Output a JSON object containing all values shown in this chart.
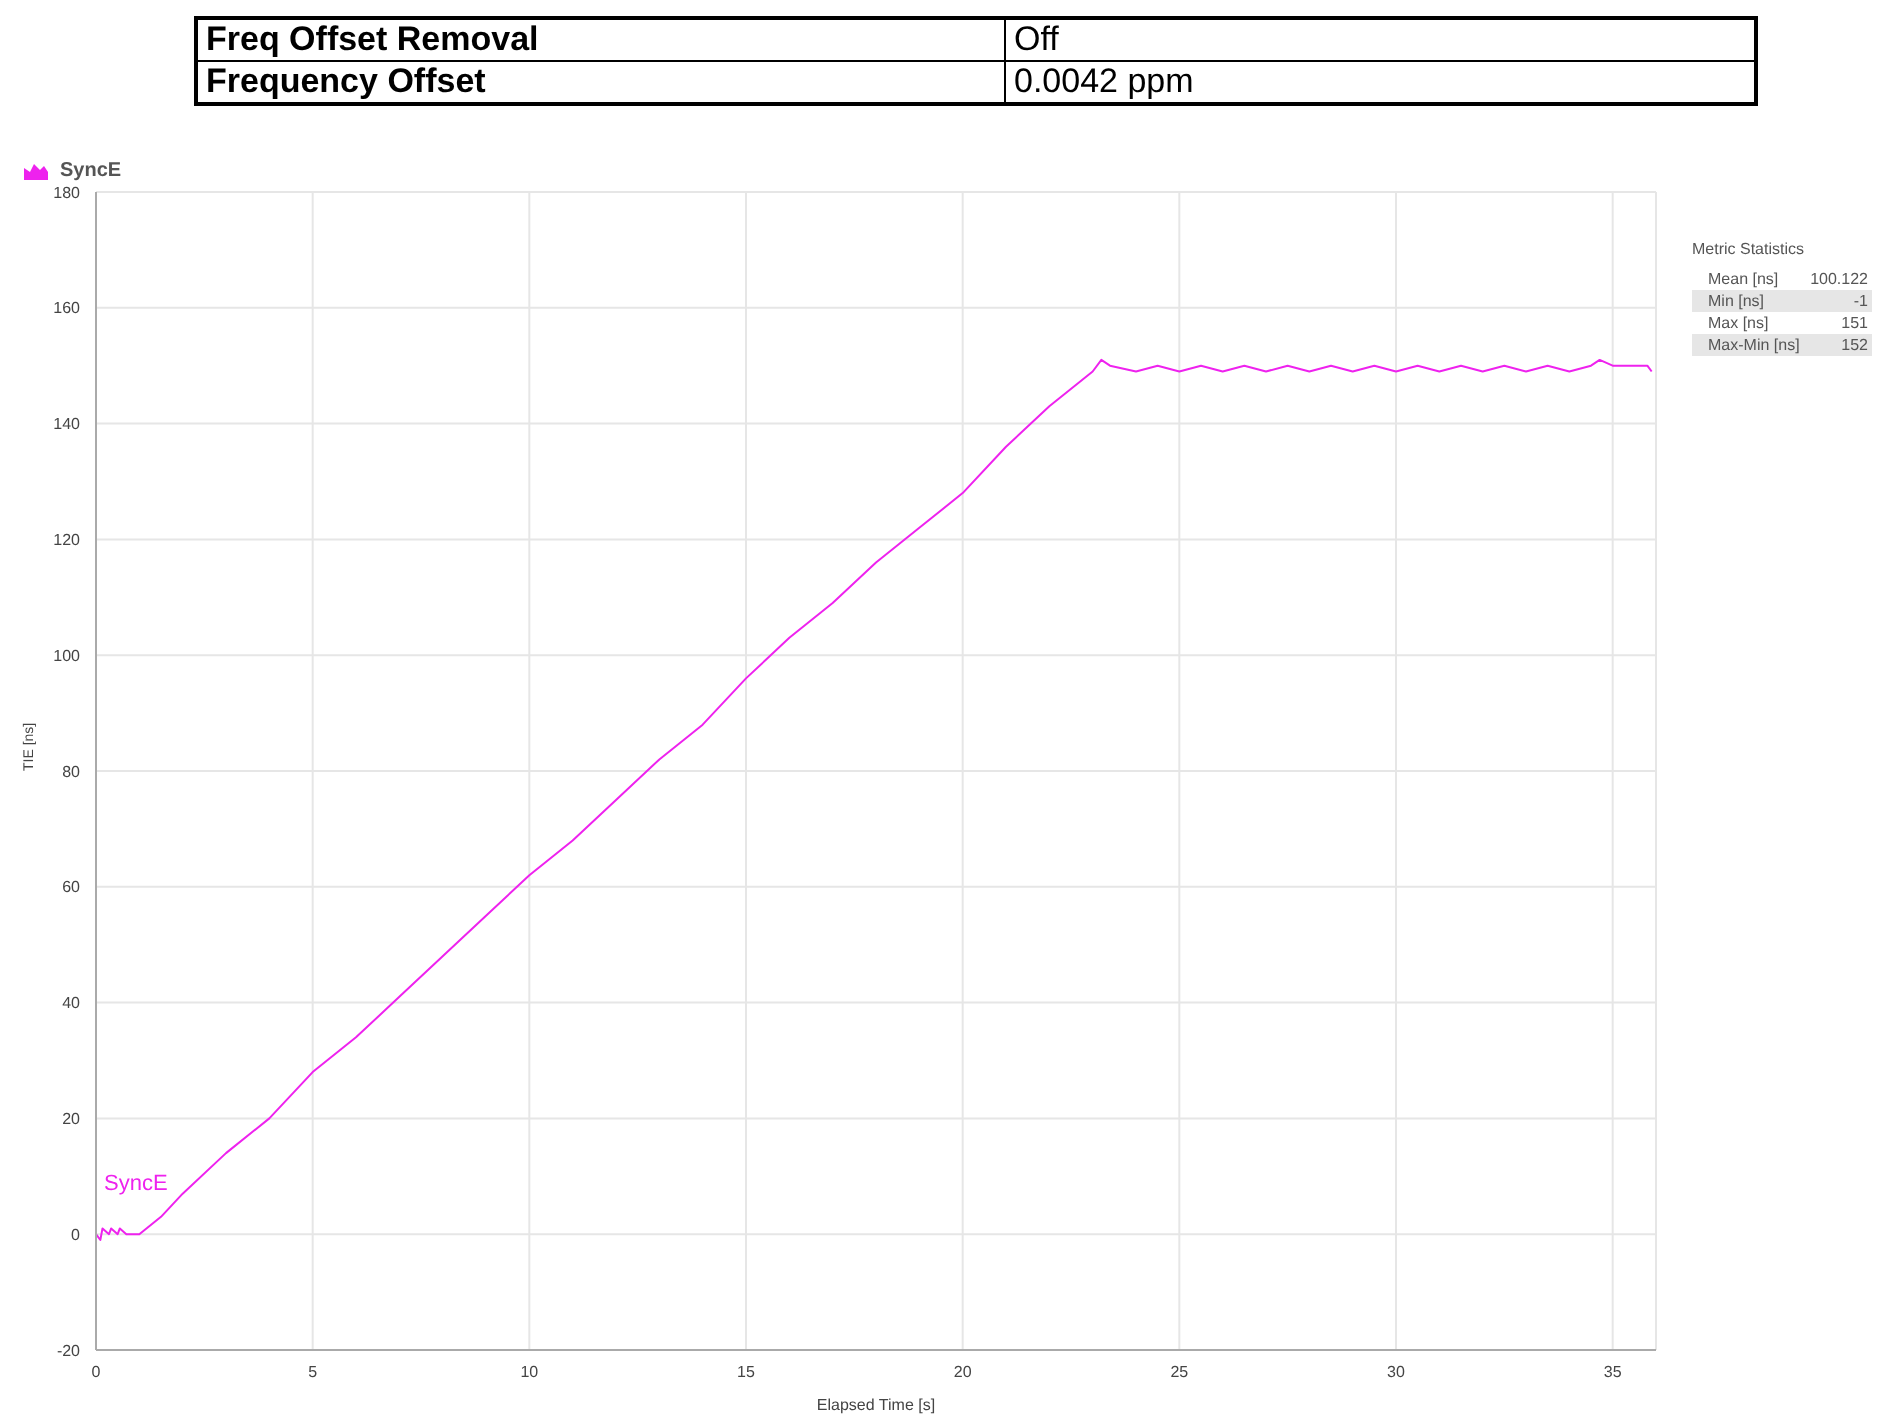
{
  "chart_data": {
    "type": "line",
    "xlabel": "Elapsed Time [s]",
    "ylabel": "TIE [ns]",
    "annotations": [
      "Freq Offset Removal",
      "Off",
      "Frequency Offset",
      "0.0042 ppm",
      "Metric Statistics",
      "Mean [ns]",
      "100.122",
      "Min [ns]",
      "-1",
      "Max [ns]",
      "151",
      "Max-Min [ns]",
      "152"
    ],
    "xlim": [
      0,
      36
    ],
    "xticks": [
      0,
      5,
      10,
      15,
      20,
      25,
      30,
      35
    ],
    "ylim": [
      -20,
      180
    ],
    "yticks": [
      -20,
      0,
      20,
      40,
      60,
      80,
      100,
      120,
      140,
      160,
      180
    ],
    "grid": true,
    "legend": "top left",
    "marker": "none",
    "line_style": "solid",
    "series": [
      {
        "name": "SyncE",
        "color": "#ee22ee",
        "x": [
          0,
          0.1,
          0.15,
          0.3,
          0.35,
          0.5,
          0.55,
          0.7,
          1.0,
          1.5,
          2,
          3,
          4,
          5,
          6,
          7,
          8,
          9,
          10,
          11,
          12,
          13,
          14,
          15,
          16,
          17,
          18,
          19,
          20,
          21,
          22,
          23,
          23.2,
          23.4,
          24,
          24.5,
          25,
          25.5,
          26,
          26.5,
          27,
          27.5,
          28,
          28.5,
          29,
          29.5,
          30,
          30.5,
          31,
          31.5,
          32,
          32.5,
          33,
          33.5,
          34,
          34.5,
          34.7,
          35,
          35.5,
          35.8,
          35.9
        ],
        "values": [
          0,
          -1,
          1,
          0,
          1,
          0,
          1,
          0,
          0,
          3,
          7,
          14,
          20,
          28,
          34,
          41,
          48,
          55,
          62,
          68,
          75,
          82,
          88,
          96,
          103,
          109,
          116,
          122,
          128,
          136,
          143,
          149,
          151,
          150,
          149,
          150,
          149,
          150,
          149,
          150,
          149,
          150,
          149,
          150,
          149,
          150,
          149,
          150,
          149,
          150,
          149,
          150,
          149,
          150,
          149,
          150,
          151,
          150,
          150,
          150,
          149
        ]
      }
    ]
  }
}
